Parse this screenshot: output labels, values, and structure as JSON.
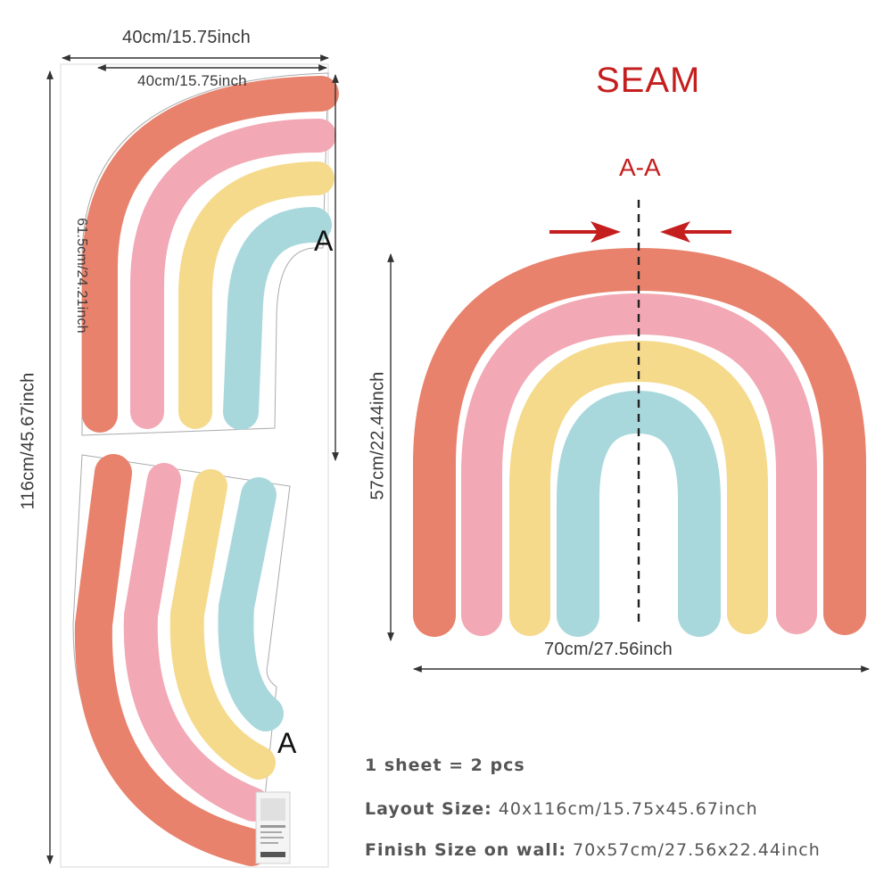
{
  "title": "SEAM",
  "section_label": "A-A",
  "seam_marker": "A",
  "layout_dimensions": {
    "sheet_width": "40cm/15.75inch",
    "piece_width": "40cm/15.75inch",
    "piece_height": "61.5cm/24.21inch",
    "sheet_height": "116cm/45.67inch"
  },
  "finished_dimensions": {
    "height": "57cm/22.44inch",
    "width": "70cm/27.56inch"
  },
  "specs": {
    "quantity": "1 sheet = 2 pcs",
    "layout_label": "Layout Size:",
    "layout_value": "40x116cm/15.75x45.67inch",
    "finish_label": "Finish Size on wall:",
    "finish_value": "70x57cm/27.56x22.44inch"
  },
  "colors": {
    "band_outer": "#e8826c",
    "band_pink": "#f2a8b5",
    "band_yellow": "#f5da8c",
    "band_blue": "#a9d8dc",
    "seam_red": "#c41e1e"
  }
}
